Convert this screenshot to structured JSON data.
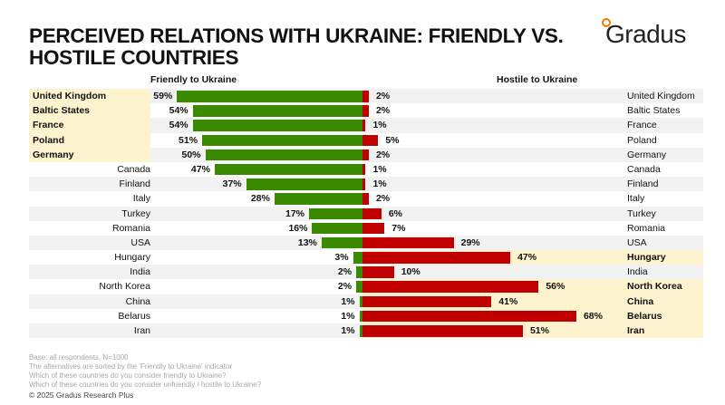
{
  "title": "PERCEIVED RELATIONS WITH UKRAINE: FRIENDLY VS. HOSTILE COUNTRIES",
  "logo": "Gradus",
  "chart_data": {
    "type": "bar",
    "orientation": "horizontal-diverging",
    "series": [
      {
        "name": "Friendly to Ukraine",
        "color": "#3a8a00",
        "values": [
          59,
          54,
          54,
          51,
          50,
          47,
          37,
          28,
          17,
          16,
          13,
          3,
          2,
          2,
          1,
          1,
          1
        ]
      },
      {
        "name": "Hostile to Ukraine",
        "color": "#c00000",
        "values": [
          2,
          2,
          1,
          5,
          2,
          1,
          1,
          2,
          6,
          7,
          29,
          47,
          10,
          56,
          41,
          68,
          51
        ]
      }
    ],
    "categories": [
      "United Kingdom",
      "Baltic States",
      "France",
      "Poland",
      "Germany",
      "Canada",
      "Finland",
      "Italy",
      "Turkey",
      "Romania",
      "USA",
      "Hungary",
      "India",
      "North Korea",
      "China",
      "Belarus",
      "Iran"
    ],
    "highlight_friendly": [
      "United Kingdom",
      "Baltic States",
      "France",
      "Poland",
      "Germany"
    ],
    "highlight_hostile": [
      "Hungary",
      "North Korea",
      "China",
      "Belarus",
      "Iran"
    ],
    "unit": "%",
    "highlight_color": "#fdf3cf"
  },
  "footnotes": [
    "Base: all respondents, N=1000",
    "The alternatives are sorted by the 'Friendly to Ukraine' indicator",
    "Which of these countries do you consider friendly to Ukraine?",
    "Which of these countries do you consider unfriendly / hostile to Ukraine?"
  ],
  "copyright": "© 2025 Gradus Research Plus"
}
